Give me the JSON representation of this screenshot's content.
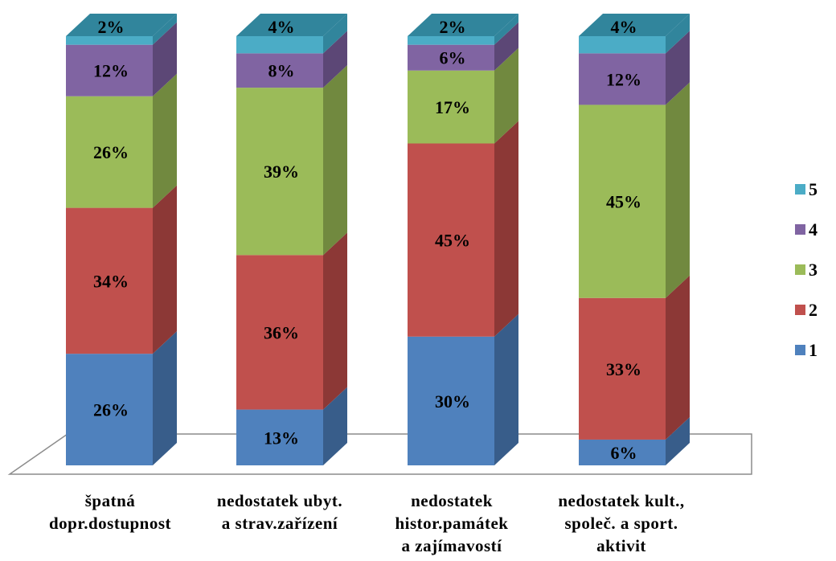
{
  "chart_data": {
    "type": "bar",
    "stacked": true,
    "three_d": true,
    "categories": [
      [
        "špatná",
        "dopr.dostupnost"
      ],
      [
        "nedostatek ubyt.",
        "a strav.zařízení"
      ],
      [
        "nedostatek",
        "histor.památek",
        "a zajímavostí"
      ],
      [
        "nedostatek kult.,",
        "společ. a sport.",
        "aktivit"
      ]
    ],
    "series": [
      {
        "name": "1",
        "values": [
          26,
          13,
          30,
          6
        ],
        "color": "#4F81BD",
        "side": "#385D8A"
      },
      {
        "name": "2",
        "values": [
          34,
          36,
          45,
          33
        ],
        "color": "#C0504D",
        "side": "#8C3836"
      },
      {
        "name": "3",
        "values": [
          26,
          39,
          17,
          45
        ],
        "color": "#9BBB59",
        "side": "#71893F"
      },
      {
        "name": "4",
        "values": [
          12,
          8,
          6,
          12
        ],
        "color": "#8064A2",
        "side": "#5C4776"
      },
      {
        "name": "5",
        "values": [
          2,
          4,
          2,
          4
        ],
        "color": "#4BACC6",
        "side": "#31859C"
      }
    ],
    "data_labels": [
      [
        "26%",
        "34%",
        "26%",
        "12%",
        "2%"
      ],
      [
        "13%",
        "36%",
        "39%",
        "8%",
        "4%"
      ],
      [
        "30%",
        "45%",
        "17%",
        "6%",
        "2%"
      ],
      [
        "6%",
        "33%",
        "45%",
        "12%",
        "4%"
      ]
    ],
    "legend_position": "right",
    "legend_order": [
      "5",
      "4",
      "3",
      "2",
      "1"
    ],
    "grid": false
  }
}
